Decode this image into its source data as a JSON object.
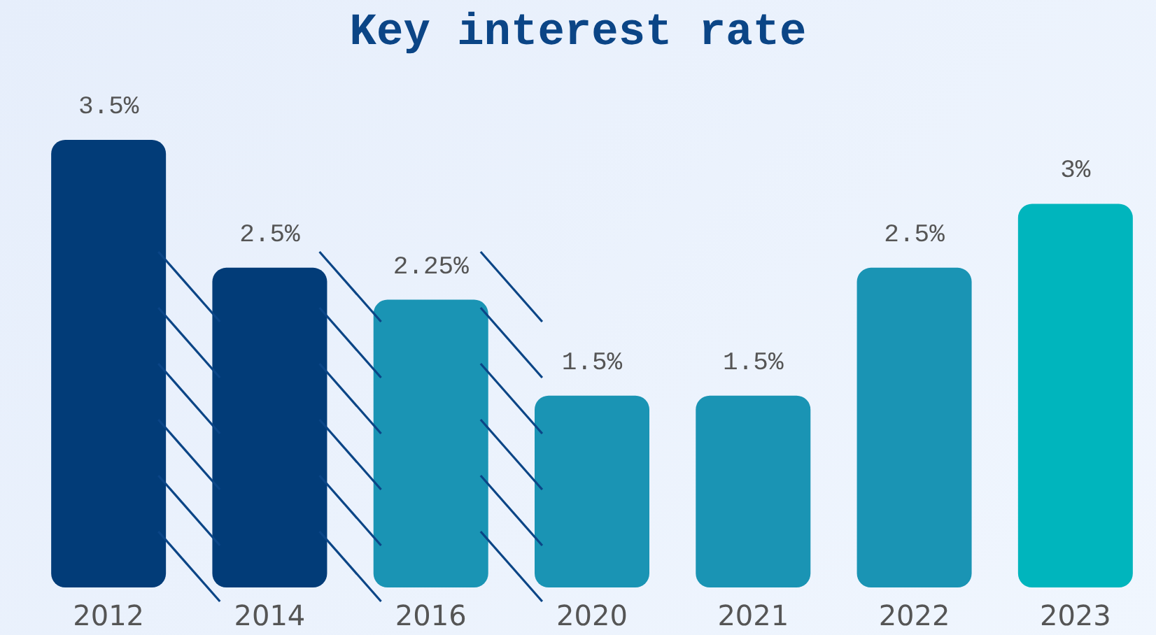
{
  "chart_data": {
    "type": "bar",
    "title": "Key interest rate",
    "categories": [
      "2012",
      "2014",
      "2016",
      "2020",
      "2021",
      "2022",
      "2023"
    ],
    "values": [
      3.5,
      2.5,
      2.25,
      1.5,
      1.5,
      2.5,
      3
    ],
    "value_labels": [
      "3.5%",
      "2.5%",
      "2.25%",
      "1.5%",
      "1.5%",
      "2.5%",
      "3%"
    ],
    "colors": [
      "#023c78",
      "#023c78",
      "#1a94b4",
      "#1a94b4",
      "#1a94b4",
      "#1a94b4",
      "#00b5bd"
    ],
    "tick_labels": "x"
  }
}
